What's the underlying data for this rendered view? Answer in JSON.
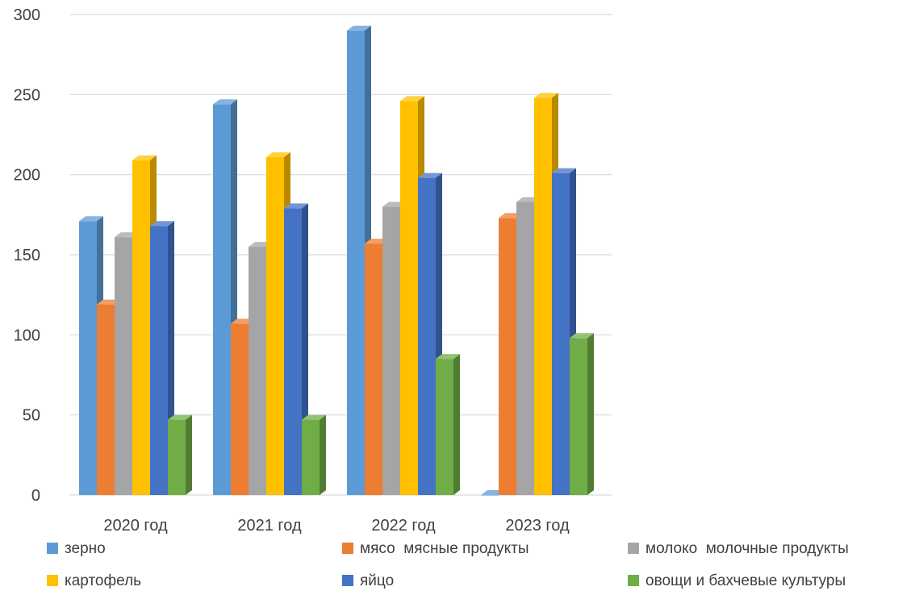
{
  "chart_data": {
    "type": "bar",
    "title": "",
    "xlabel": "",
    "ylabel": "",
    "ylim": [
      0,
      300
    ],
    "yticks": [
      0,
      50,
      100,
      150,
      200,
      250,
      300
    ],
    "grid": true,
    "legend_position": "bottom",
    "categories": [
      "2020 год",
      "2021 год",
      "2022 год",
      "2023 год"
    ],
    "series": [
      {
        "name": "зерно",
        "color": "#5b9bd5",
        "values": [
          171,
          244,
          290,
          0
        ]
      },
      {
        "name": "мясо  мясные продукты",
        "color": "#ed7d31",
        "values": [
          119,
          107,
          157,
          173
        ]
      },
      {
        "name": "молоко  молочные продукты",
        "color": "#a5a5a5",
        "values": [
          161,
          155,
          180,
          183
        ]
      },
      {
        "name": "картофель",
        "color": "#ffc000",
        "values": [
          209,
          211,
          246,
          248
        ]
      },
      {
        "name": "яйцо",
        "color": "#4472c4",
        "values": [
          168,
          179,
          198,
          201
        ]
      },
      {
        "name": "овощи и бахчевые культуры",
        "color": "#70ad47",
        "values": [
          47,
          47,
          85,
          98
        ]
      }
    ]
  }
}
